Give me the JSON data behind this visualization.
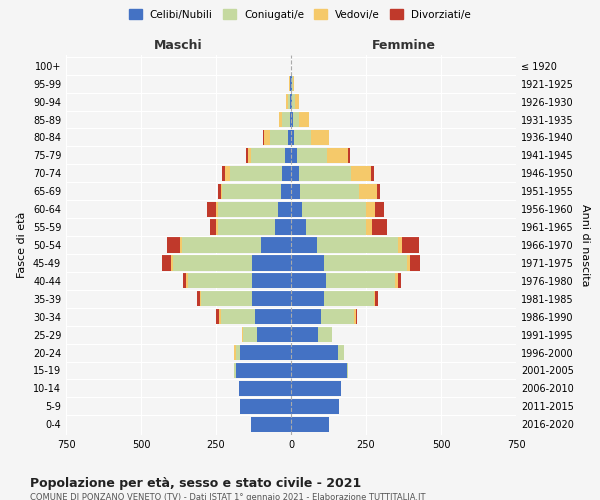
{
  "age_groups": [
    "0-4",
    "5-9",
    "10-14",
    "15-19",
    "20-24",
    "25-29",
    "30-34",
    "35-39",
    "40-44",
    "45-49",
    "50-54",
    "55-59",
    "60-64",
    "65-69",
    "70-74",
    "75-79",
    "80-84",
    "85-89",
    "90-94",
    "95-99",
    "100+"
  ],
  "birth_years": [
    "2016-2020",
    "2011-2015",
    "2006-2010",
    "2001-2005",
    "1996-2000",
    "1991-1995",
    "1986-1990",
    "1981-1985",
    "1976-1980",
    "1971-1975",
    "1966-1970",
    "1961-1965",
    "1956-1960",
    "1951-1955",
    "1946-1950",
    "1941-1945",
    "1936-1940",
    "1931-1935",
    "1926-1930",
    "1921-1925",
    "≤ 1920"
  ],
  "males": {
    "celibi": [
      135,
      170,
      175,
      185,
      170,
      115,
      120,
      130,
      130,
      130,
      100,
      55,
      45,
      35,
      30,
      20,
      10,
      5,
      3,
      2,
      0
    ],
    "coniugati": [
      0,
      0,
      0,
      5,
      15,
      45,
      115,
      170,
      215,
      265,
      265,
      190,
      200,
      195,
      175,
      115,
      60,
      25,
      8,
      2,
      0
    ],
    "vedovi": [
      0,
      0,
      0,
      0,
      5,
      5,
      5,
      5,
      5,
      5,
      5,
      5,
      5,
      5,
      15,
      10,
      20,
      10,
      5,
      2,
      0
    ],
    "divorziati": [
      0,
      0,
      0,
      0,
      0,
      0,
      10,
      10,
      10,
      30,
      45,
      20,
      30,
      10,
      10,
      5,
      5,
      0,
      0,
      0,
      0
    ]
  },
  "females": {
    "nubili": [
      125,
      160,
      165,
      185,
      155,
      90,
      100,
      110,
      115,
      110,
      85,
      50,
      35,
      30,
      25,
      20,
      10,
      5,
      3,
      2,
      0
    ],
    "coniugate": [
      0,
      0,
      0,
      5,
      20,
      45,
      110,
      165,
      230,
      275,
      270,
      200,
      215,
      195,
      175,
      100,
      55,
      20,
      10,
      3,
      0
    ],
    "vedove": [
      0,
      0,
      0,
      0,
      0,
      0,
      5,
      5,
      10,
      10,
      15,
      20,
      30,
      60,
      65,
      70,
      60,
      35,
      15,
      5,
      0
    ],
    "divorziate": [
      0,
      0,
      0,
      0,
      0,
      0,
      5,
      10,
      10,
      35,
      55,
      50,
      30,
      10,
      10,
      5,
      0,
      0,
      0,
      0,
      0
    ]
  },
  "colors": {
    "celibi": "#4472c4",
    "coniugati": "#c5d9a0",
    "vedovi": "#f5c96a",
    "divorziati": "#c0392b"
  },
  "xlim": 750,
  "title": "Popolazione per età, sesso e stato civile - 2021",
  "subtitle": "COMUNE DI PONZANO VENETO (TV) - Dati ISTAT 1° gennaio 2021 - Elaborazione TUTTITALIA.IT",
  "ylabel_left": "Fasce di età",
  "ylabel_right": "Anni di nascita",
  "xlabel_maschi": "Maschi",
  "xlabel_femmine": "Femmine",
  "bg_color": "#f5f5f5",
  "bar_height": 0.85
}
